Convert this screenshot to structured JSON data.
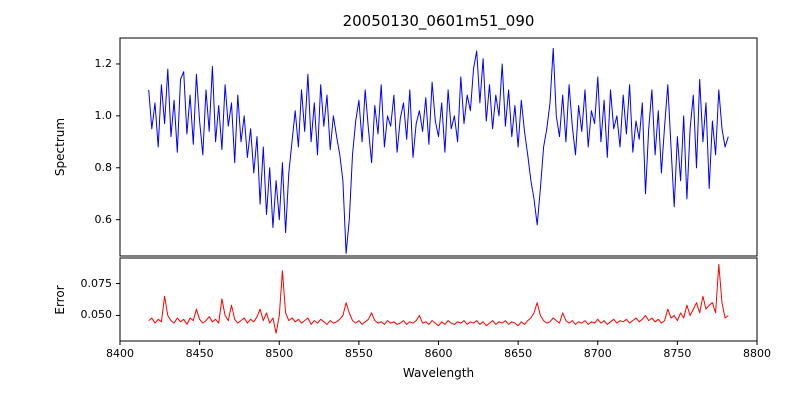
{
  "chart_data": {
    "type": "line",
    "title": "20050130_0601m51_090",
    "xlabel": "Wavelength",
    "xlim": [
      8400,
      8800
    ],
    "xticks": [
      8400,
      8450,
      8500,
      8550,
      8600,
      8650,
      8700,
      8750,
      8800
    ],
    "grid": false,
    "legend": "none",
    "panels": [
      {
        "name": "spectrum",
        "ylabel": "Spectrum",
        "color": "#0000ff",
        "ylim": [
          0.46,
          1.3
        ],
        "yticks": [
          0.6,
          0.8,
          1.0,
          1.2
        ],
        "ytick_labels": [
          "0.6",
          "0.8",
          "1.0",
          "1.2"
        ],
        "x_start": 8418,
        "x_step": 2,
        "values": [
          1.1,
          0.95,
          1.05,
          0.88,
          1.12,
          0.97,
          1.18,
          0.92,
          1.06,
          0.86,
          1.14,
          1.17,
          0.93,
          1.08,
          0.89,
          1.16,
          0.98,
          0.85,
          1.1,
          0.94,
          1.19,
          0.9,
          1.04,
          0.87,
          1.12,
          0.96,
          1.05,
          0.82,
          1.08,
          0.9,
          1.0,
          0.84,
          0.95,
          0.78,
          0.92,
          0.66,
          0.88,
          0.62,
          0.8,
          0.57,
          0.75,
          0.6,
          0.82,
          0.55,
          0.78,
          0.9,
          1.02,
          0.88,
          1.1,
          0.94,
          1.16,
          0.9,
          1.05,
          0.85,
          1.12,
          0.96,
          1.08,
          0.87,
          1.0,
          0.92,
          0.85,
          0.75,
          0.47,
          0.6,
          0.85,
          0.98,
          1.06,
          0.9,
          1.1,
          0.95,
          0.82,
          1.04,
          0.93,
          1.12,
          0.88,
          1.0,
          0.96,
          1.08,
          0.86,
          0.99,
          1.05,
          0.91,
          1.1,
          0.84,
          0.97,
          1.02,
          0.94,
          1.07,
          0.89,
          1.13,
          0.98,
          0.92,
          1.05,
          0.86,
          1.1,
          0.95,
          1.0,
          0.9,
          1.15,
          0.97,
          1.08,
          1.02,
          1.18,
          1.25,
          1.05,
          1.22,
          0.98,
          1.12,
          0.95,
          1.08,
          1.0,
          1.2,
          0.96,
          1.1,
          0.92,
          1.04,
          0.88,
          1.06,
          0.94,
          0.85,
          0.75,
          0.68,
          0.58,
          0.72,
          0.88,
          0.95,
          1.05,
          1.26,
          1.0,
          0.92,
          1.08,
          0.9,
          1.12,
          0.96,
          0.85,
          1.04,
          0.94,
          1.1,
          0.88,
          1.02,
          0.97,
          1.15,
          0.9,
          1.06,
          0.84,
          1.1,
          0.95,
          1.0,
          0.88,
          1.08,
          0.93,
          1.12,
          0.86,
          0.98,
          0.91,
          1.05,
          0.7,
          0.95,
          1.1,
          0.85,
          1.02,
          0.78,
          0.96,
          1.12,
          0.88,
          0.65,
          0.92,
          0.75,
          1.0,
          0.68,
          0.95,
          1.08,
          0.8,
          1.14,
          0.9,
          1.05,
          0.72,
          0.98,
          0.85,
          1.1,
          0.95,
          0.88,
          0.92
        ]
      },
      {
        "name": "error",
        "ylabel": "Error",
        "color": "#ff0000",
        "ylim": [
          0.03,
          0.095
        ],
        "yticks": [
          0.05,
          0.075
        ],
        "ytick_labels": [
          "0.050",
          "0.075"
        ],
        "x_start": 8418,
        "x_step": 2,
        "values": [
          0.046,
          0.048,
          0.044,
          0.047,
          0.045,
          0.065,
          0.05,
          0.046,
          0.044,
          0.048,
          0.045,
          0.047,
          0.043,
          0.048,
          0.046,
          0.055,
          0.047,
          0.044,
          0.046,
          0.049,
          0.045,
          0.047,
          0.044,
          0.063,
          0.05,
          0.046,
          0.058,
          0.047,
          0.044,
          0.046,
          0.048,
          0.044,
          0.047,
          0.045,
          0.049,
          0.055,
          0.046,
          0.052,
          0.044,
          0.048,
          0.036,
          0.05,
          0.085,
          0.052,
          0.046,
          0.048,
          0.045,
          0.047,
          0.044,
          0.046,
          0.048,
          0.043,
          0.046,
          0.044,
          0.047,
          0.045,
          0.043,
          0.046,
          0.044,
          0.045,
          0.047,
          0.05,
          0.06,
          0.052,
          0.046,
          0.044,
          0.046,
          0.043,
          0.045,
          0.047,
          0.052,
          0.046,
          0.044,
          0.045,
          0.043,
          0.046,
          0.044,
          0.045,
          0.043,
          0.044,
          0.046,
          0.043,
          0.045,
          0.044,
          0.046,
          0.05,
          0.044,
          0.045,
          0.043,
          0.046,
          0.044,
          0.042,
          0.045,
          0.043,
          0.046,
          0.044,
          0.043,
          0.045,
          0.044,
          0.046,
          0.043,
          0.045,
          0.044,
          0.046,
          0.043,
          0.045,
          0.042,
          0.044,
          0.046,
          0.043,
          0.045,
          0.044,
          0.046,
          0.043,
          0.045,
          0.044,
          0.042,
          0.045,
          0.043,
          0.046,
          0.048,
          0.052,
          0.06,
          0.05,
          0.046,
          0.044,
          0.045,
          0.048,
          0.046,
          0.044,
          0.052,
          0.046,
          0.044,
          0.046,
          0.043,
          0.045,
          0.044,
          0.046,
          0.043,
          0.045,
          0.044,
          0.047,
          0.044,
          0.046,
          0.043,
          0.045,
          0.047,
          0.044,
          0.046,
          0.045,
          0.047,
          0.044,
          0.046,
          0.048,
          0.045,
          0.047,
          0.05,
          0.046,
          0.048,
          0.045,
          0.047,
          0.044,
          0.046,
          0.055,
          0.048,
          0.05,
          0.046,
          0.052,
          0.048,
          0.058,
          0.05,
          0.055,
          0.06,
          0.052,
          0.065,
          0.055,
          0.058,
          0.06,
          0.052,
          0.09,
          0.06,
          0.048,
          0.05
        ]
      }
    ]
  }
}
